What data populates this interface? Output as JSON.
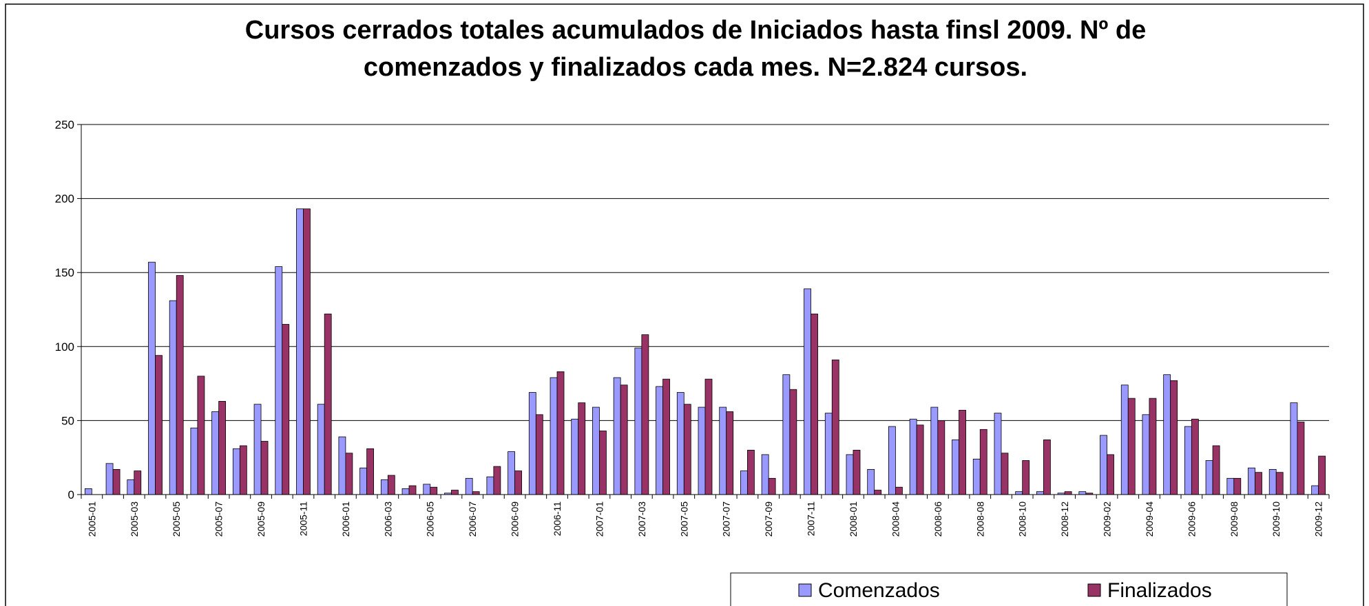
{
  "chart_data": {
    "type": "bar",
    "title": "Cursos cerrados totales acumulados de Iniciados hasta finsl 2009. Nº de",
    "subtitle": "comenzados y finalizados cada mes. N=2.824 cursos.",
    "categories": [
      "2005-01",
      null,
      "2005-03",
      null,
      "2005-05",
      null,
      "2005-07",
      null,
      "2005-09",
      null,
      "2005-11",
      null,
      "2006-01",
      null,
      "2006-03",
      null,
      "2006-05",
      null,
      "2006-07",
      null,
      "2006-09",
      null,
      "2006-11",
      null,
      "2007-01",
      null,
      "2007-03",
      null,
      "2007-05",
      null,
      "2007-07",
      null,
      "2007-09",
      null,
      "2007-11",
      null,
      "2008-01",
      null,
      "2008-04",
      null,
      "2008-06",
      null,
      "2008-08",
      null,
      "2008-10",
      null,
      "2008-12",
      null,
      "2009-02",
      null,
      "2009-04",
      null,
      "2009-06",
      null,
      "2009-08",
      null,
      "2009-10",
      null,
      "2009-12"
    ],
    "series": [
      {
        "name": "Comenzados",
        "color": "#9999ff",
        "values": [
          4,
          21,
          10,
          157,
          131,
          45,
          56,
          31,
          61,
          154,
          193,
          61,
          39,
          18,
          10,
          4,
          7,
          1,
          11,
          12,
          29,
          69,
          79,
          51,
          59,
          79,
          99,
          73,
          69,
          59,
          59,
          16,
          27,
          81,
          139,
          55,
          27,
          17,
          46,
          51,
          59,
          37,
          24,
          55,
          2,
          2,
          1,
          2,
          40,
          74,
          54,
          81,
          46,
          23,
          11,
          18,
          17,
          62,
          6
        ]
      },
      {
        "name": "Finalizados",
        "color": "#993366",
        "values": [
          0,
          17,
          16,
          94,
          148,
          80,
          63,
          33,
          36,
          115,
          193,
          122,
          28,
          31,
          13,
          6,
          5,
          3,
          2,
          19,
          16,
          54,
          83,
          62,
          43,
          74,
          108,
          78,
          61,
          78,
          56,
          30,
          11,
          71,
          122,
          91,
          30,
          3,
          5,
          47,
          50,
          57,
          44,
          28,
          23,
          37,
          2,
          1,
          27,
          65,
          65,
          77,
          51,
          33,
          11,
          15,
          15,
          49,
          26
        ]
      }
    ],
    "ylim": [
      0,
      250
    ],
    "yticks": [
      0,
      50,
      100,
      150,
      200,
      250
    ],
    "grid": true,
    "legend": "bottom"
  }
}
